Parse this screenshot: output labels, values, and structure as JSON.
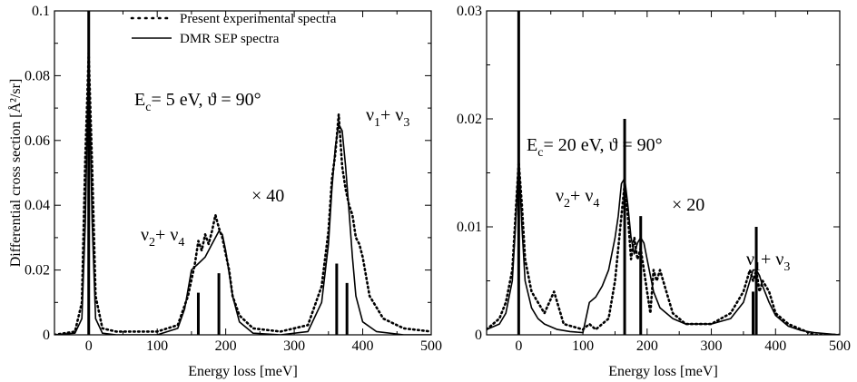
{
  "chart_data": [
    {
      "type": "line",
      "ylabel": "Differential cross section [Å²/sr]",
      "xlabel": "Energy loss [meV]",
      "xlim": [
        -50,
        500
      ],
      "ylim": [
        0,
        0.1
      ],
      "xticks": [
        "0",
        "100",
        "200",
        "300",
        "400",
        "500"
      ],
      "yticks": [
        "0",
        "0.02",
        "0.04",
        "0.06",
        "0.08",
        "0.1"
      ],
      "legend": {
        "position": "top-right",
        "entries": [
          "Present experimental spectra",
          "DMR SEP spectra"
        ]
      },
      "annotations": {
        "conditions_a": "E",
        "conditions_sub": "c",
        "conditions_b": "= 5 eV,   ϑ = 90°",
        "scale": "× 40",
        "band1_a": "ν",
        "band1_s1": "2",
        "band1_b": "+ ν",
        "band1_s2": "4",
        "band2_a": "ν",
        "band2_s1": "1",
        "band2_b": "+ ν",
        "band2_s2": "3"
      },
      "series": [
        {
          "name": "Present experimental spectra",
          "style": "dotted",
          "x": [
            -50,
            -20,
            -10,
            -5,
            0,
            5,
            10,
            20,
            40,
            70,
            100,
            130,
            145,
            155,
            160,
            165,
            170,
            175,
            180,
            185,
            190,
            195,
            200,
            205,
            210,
            220,
            240,
            280,
            320,
            340,
            350,
            355,
            360,
            365,
            370,
            375,
            380,
            385,
            390,
            395,
            400,
            410,
            430,
            460,
            500
          ],
          "y": [
            0,
            0.001,
            0.01,
            0.055,
            0.087,
            0.052,
            0.012,
            0.002,
            0.001,
            0.001,
            0.001,
            0.003,
            0.012,
            0.022,
            0.029,
            0.026,
            0.031,
            0.028,
            0.032,
            0.037,
            0.033,
            0.03,
            0.025,
            0.02,
            0.012,
            0.006,
            0.002,
            0.001,
            0.003,
            0.015,
            0.032,
            0.048,
            0.056,
            0.068,
            0.052,
            0.045,
            0.04,
            0.037,
            0.03,
            0.028,
            0.024,
            0.012,
            0.005,
            0.002,
            0.001
          ]
        },
        {
          "name": "DMR SEP spectra",
          "style": "solid",
          "x": [
            -50,
            -20,
            -10,
            -5,
            0,
            5,
            10,
            20,
            40,
            100,
            130,
            140,
            150,
            160,
            170,
            180,
            190,
            195,
            200,
            210,
            220,
            240,
            280,
            320,
            340,
            350,
            355,
            360,
            365,
            370,
            375,
            380,
            385,
            390,
            400,
            420,
            460,
            500
          ],
          "y": [
            0,
            0.0005,
            0.005,
            0.035,
            0.087,
            0.035,
            0.005,
            0.0005,
            0,
            0,
            0.002,
            0.008,
            0.02,
            0.022,
            0.024,
            0.028,
            0.032,
            0.031,
            0.026,
            0.012,
            0.004,
            0.0005,
            0,
            0.001,
            0.01,
            0.028,
            0.045,
            0.058,
            0.065,
            0.063,
            0.052,
            0.038,
            0.024,
            0.012,
            0.004,
            0.001,
            0,
            0
          ]
        },
        {
          "name": "",
          "style": "sticks",
          "x": [
            0,
            160,
            190,
            362,
            377
          ],
          "y": [
            0.1,
            0.013,
            0.019,
            0.022,
            0.016
          ]
        }
      ]
    },
    {
      "type": "line",
      "ylabel": "",
      "xlabel": "Energy loss [meV]",
      "xlim": [
        -50,
        500
      ],
      "ylim": [
        0,
        0.03
      ],
      "xticks": [
        "0",
        "100",
        "200",
        "300",
        "400",
        "500"
      ],
      "yticks": [
        "0",
        "0.01",
        "0.02",
        "0.03"
      ],
      "annotations": {
        "conditions_a": "E",
        "conditions_sub": "c",
        "conditions_b": "= 20 eV,   ϑ = 90°",
        "scale": "× 20",
        "band1_a": "ν",
        "band1_s1": "2",
        "band1_b": "+ ν",
        "band1_s2": "4",
        "band2_a": "ν",
        "band2_s1": "1",
        "band2_b": "+ ν",
        "band2_s2": "3"
      },
      "series": [
        {
          "name": "Present experimental spectra",
          "style": "dotted",
          "x": [
            -50,
            -30,
            -20,
            -10,
            -5,
            0,
            5,
            10,
            20,
            30,
            40,
            55,
            70,
            100,
            110,
            120,
            130,
            140,
            150,
            155,
            160,
            165,
            170,
            175,
            180,
            185,
            190,
            195,
            200,
            205,
            210,
            215,
            220,
            230,
            240,
            260,
            300,
            330,
            350,
            360,
            365,
            370,
            375,
            380,
            390,
            400,
            420,
            440,
            460,
            500
          ],
          "y": [
            0.0005,
            0.0015,
            0.003,
            0.006,
            0.011,
            0.016,
            0.012,
            0.007,
            0.004,
            0.003,
            0.002,
            0.004,
            0.001,
            0.0005,
            0.001,
            0.0005,
            0.001,
            0.0015,
            0.005,
            0.008,
            0.011,
            0.014,
            0.011,
            0.007,
            0.009,
            0.007,
            0.008,
            0.006,
            0.004,
            0.002,
            0.006,
            0.005,
            0.006,
            0.004,
            0.002,
            0.001,
            0.001,
            0.002,
            0.004,
            0.006,
            0.005,
            0.006,
            0.004,
            0.005,
            0.004,
            0.002,
            0.001,
            0.0005,
            0,
            0
          ]
        },
        {
          "name": "DMR SEP spectra",
          "style": "solid",
          "x": [
            -50,
            -30,
            -20,
            -10,
            -5,
            0,
            5,
            10,
            20,
            30,
            40,
            60,
            80,
            100,
            110,
            120,
            130,
            140,
            150,
            155,
            160,
            165,
            170,
            175,
            180,
            185,
            190,
            195,
            200,
            210,
            220,
            240,
            260,
            300,
            330,
            350,
            360,
            365,
            370,
            375,
            380,
            390,
            400,
            420,
            440,
            460,
            500
          ],
          "y": [
            0.0005,
            0.001,
            0.002,
            0.005,
            0.01,
            0.0165,
            0.01,
            0.005,
            0.0025,
            0.0015,
            0.001,
            0.0005,
            0.0003,
            0.0002,
            0.003,
            0.0035,
            0.0045,
            0.006,
            0.009,
            0.011,
            0.014,
            0.0145,
            0.012,
            0.009,
            0.0075,
            0.0085,
            0.009,
            0.0085,
            0.007,
            0.004,
            0.0025,
            0.0015,
            0.001,
            0.001,
            0.0015,
            0.003,
            0.005,
            0.006,
            0.006,
            0.0055,
            0.0045,
            0.003,
            0.0018,
            0.0008,
            0.0004,
            0.0002,
            0
          ]
        },
        {
          "name": "",
          "style": "sticks",
          "x": [
            0,
            165,
            190,
            365,
            370
          ],
          "y": [
            0.03,
            0.02,
            0.011,
            0.004,
            0.01
          ]
        }
      ]
    }
  ]
}
